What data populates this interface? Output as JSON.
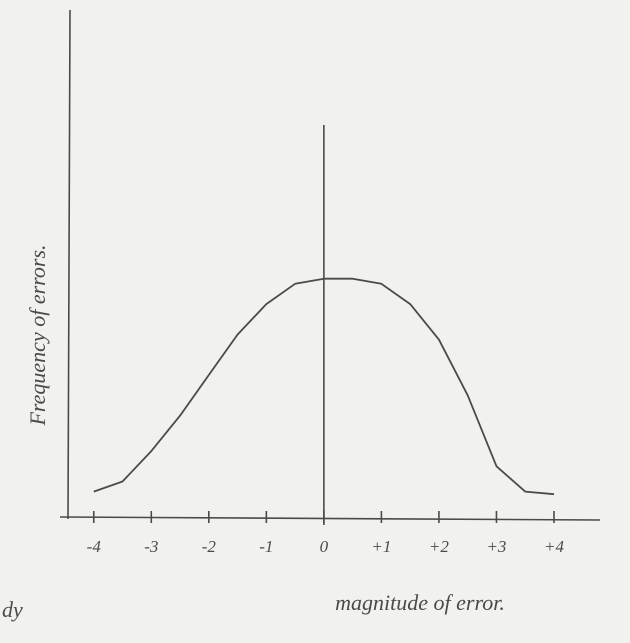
{
  "chart_data": {
    "type": "line",
    "x_label": "magnitude of error.",
    "y_label": "Frequency of errors.",
    "annotation": "dy",
    "x": [
      -4,
      -3.5,
      -3,
      -2.5,
      -2,
      -1.5,
      -1,
      -0.5,
      0,
      0.5,
      1,
      1.5,
      2,
      2.5,
      3,
      3.5,
      4
    ],
    "values": [
      5,
      7,
      13,
      20,
      28,
      36,
      42,
      46,
      47,
      47,
      46,
      42,
      35,
      24,
      10,
      5,
      4.5
    ],
    "color": "#4a4a4a",
    "xlim": [
      -4.5,
      4.8
    ],
    "ylim": [
      0,
      100
    ],
    "xticks": [
      -4,
      -3,
      -2,
      -1,
      0,
      {
        "value": 1,
        "label": "+1"
      },
      {
        "value": 2,
        "label": "+2"
      },
      {
        "value": 3,
        "label": "+3"
      },
      {
        "value": 4,
        "label": "+4"
      }
    ]
  }
}
